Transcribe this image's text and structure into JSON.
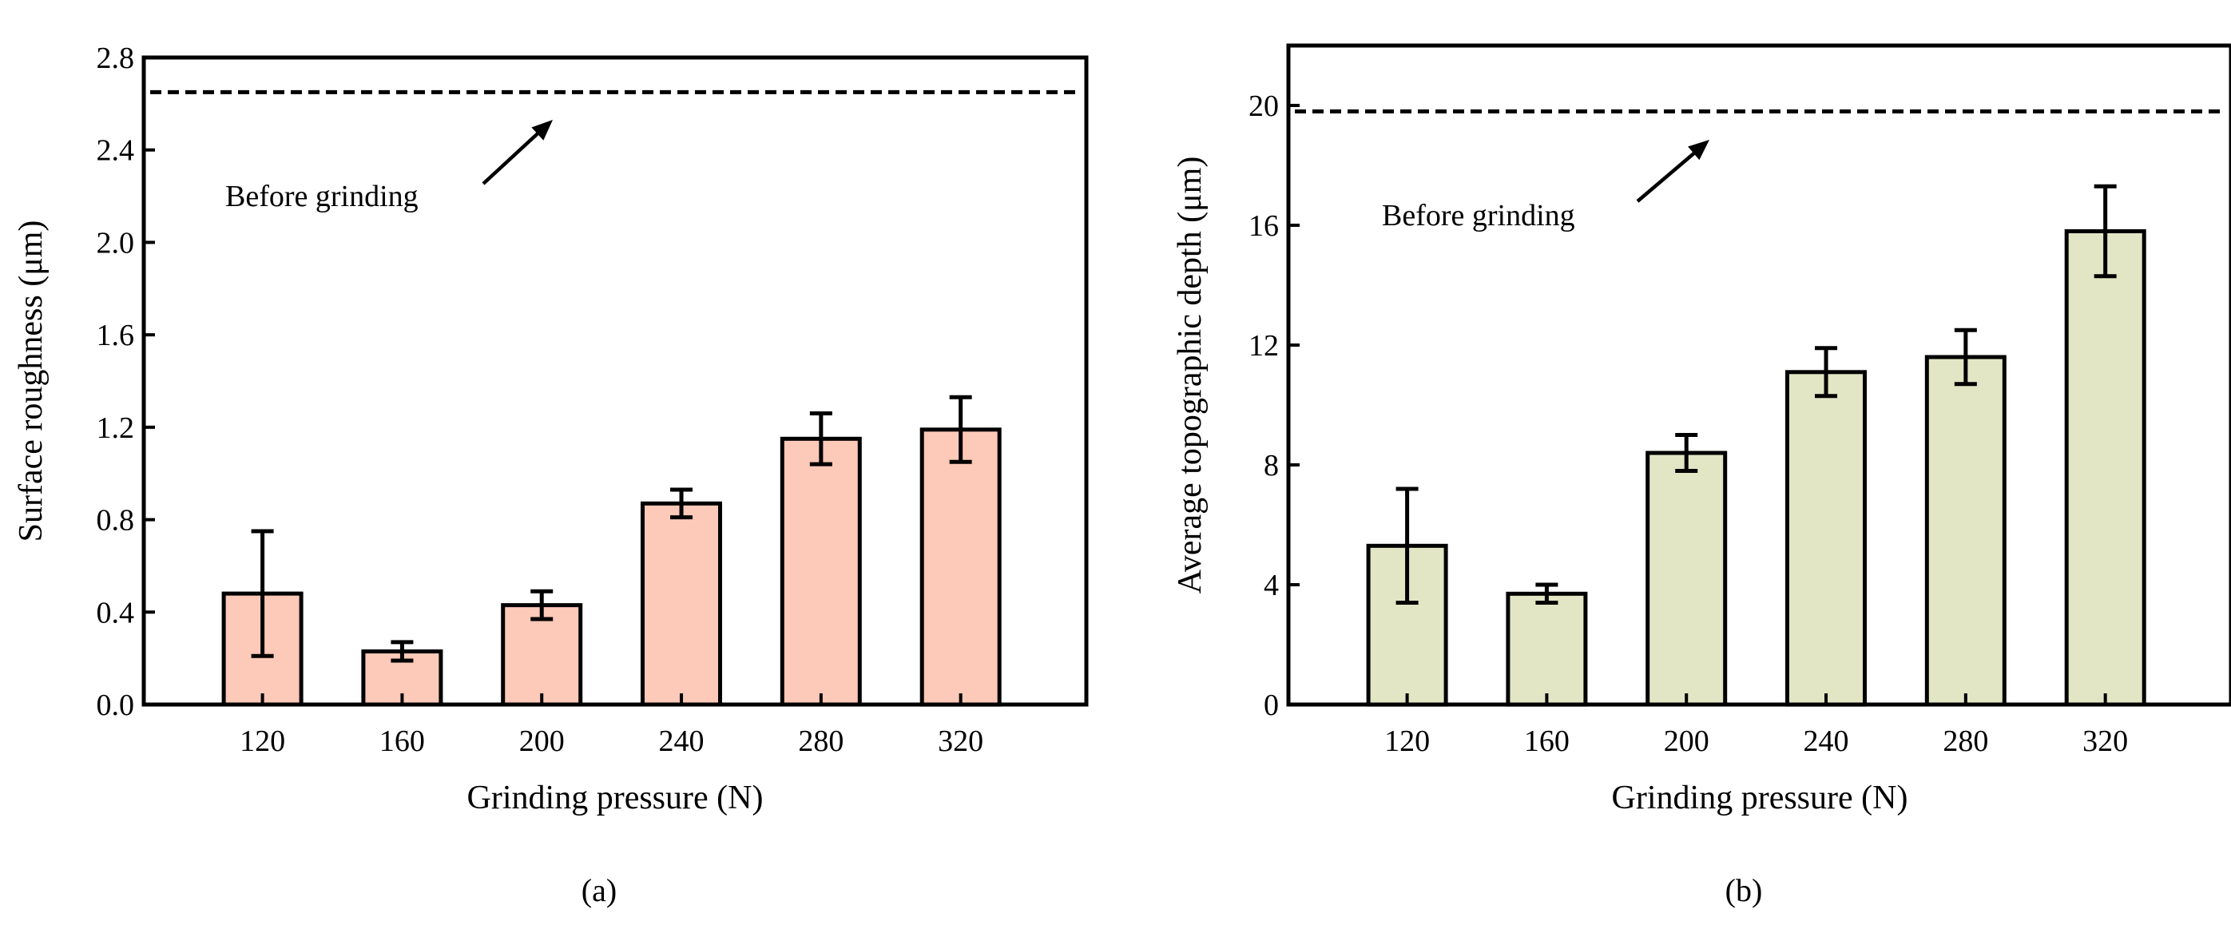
{
  "chart_data": [
    {
      "type": "bar",
      "panel_label": "(a)",
      "categories": [
        "120",
        "160",
        "200",
        "240",
        "280",
        "320"
      ],
      "values": [
        0.48,
        0.23,
        0.43,
        0.87,
        1.15,
        1.19
      ],
      "errors": [
        0.27,
        0.04,
        0.06,
        0.06,
        0.11,
        0.14
      ],
      "bar_color": "#fdc9b8",
      "xlabel": "Grinding pressure (N)",
      "ylabel": "Surface roughness (μm)",
      "ylim": [
        0,
        2.8
      ],
      "yticks": [
        "0.0",
        "0.4",
        "0.8",
        "1.2",
        "1.6",
        "2.0",
        "2.4",
        "2.8"
      ],
      "reference_line": {
        "value": 2.65,
        "style": "dashed",
        "label": "Before grinding"
      },
      "grid": false,
      "legend": "none"
    },
    {
      "type": "bar",
      "panel_label": "(b)",
      "categories": [
        "120",
        "160",
        "200",
        "240",
        "280",
        "320"
      ],
      "values": [
        5.3,
        3.7,
        8.4,
        11.1,
        11.6,
        15.8
      ],
      "errors": [
        1.9,
        0.3,
        0.6,
        0.8,
        0.9,
        1.5
      ],
      "bar_color": "#e3e6c4",
      "xlabel": "Grinding pressure (N)",
      "ylabel": "Average topographic depth (μm)",
      "ylim": [
        0,
        22
      ],
      "yticks": [
        "0",
        "4",
        "8",
        "12",
        "16",
        "20"
      ],
      "reference_line": {
        "value": 19.8,
        "style": "dashed",
        "label": "Before grinding"
      },
      "grid": false,
      "legend": "none"
    }
  ]
}
